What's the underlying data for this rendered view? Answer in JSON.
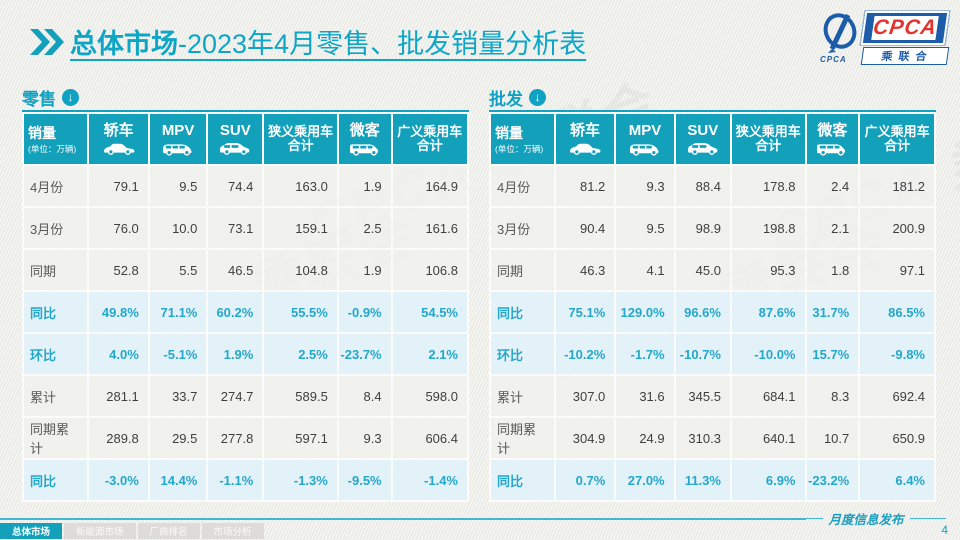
{
  "header": {
    "title_main": "总体市场",
    "title_rest": "-2023年4月零售、批发销量分析表"
  },
  "logo": {
    "cpca": "CPCA",
    "cn": "乘联合",
    "emblem_caption": "CPCA"
  },
  "watermark": "CPCA 乘联会",
  "colors": {
    "accent": "#13a0bb",
    "title_teal": "#0ea6c6",
    "percent_text": "#23a7cb",
    "percent_bg": "#e3f2f8",
    "logo_blue": "#1c5ca9",
    "logo_red": "#e4322e"
  },
  "tables": [
    {
      "id": "retail",
      "section_label": "零售",
      "unit_title": "销量",
      "unit_sub": "(单位：万辆)",
      "columns": [
        {
          "label": "轿车",
          "icon": "sedan-icon"
        },
        {
          "label": "MPV",
          "icon": "mpv-icon"
        },
        {
          "label": "SUV",
          "icon": "suv-icon"
        },
        {
          "label": "狭义乘用车",
          "label2": "合计"
        },
        {
          "label": "微客",
          "icon": "microvan-icon"
        },
        {
          "label": "广义乘用车",
          "label2": "合计"
        }
      ],
      "rows": [
        {
          "label": "4月份",
          "type": "data",
          "values": [
            "79.1",
            "9.5",
            "74.4",
            "163.0",
            "1.9",
            "164.9"
          ]
        },
        {
          "label": "3月份",
          "type": "data",
          "values": [
            "76.0",
            "10.0",
            "73.1",
            "159.1",
            "2.5",
            "161.6"
          ]
        },
        {
          "label": "同期",
          "type": "data",
          "values": [
            "52.8",
            "5.5",
            "46.5",
            "104.8",
            "1.9",
            "106.8"
          ]
        },
        {
          "label": "同比",
          "type": "percent",
          "values": [
            "49.8%",
            "71.1%",
            "60.2%",
            "55.5%",
            "-0.9%",
            "54.5%"
          ]
        },
        {
          "label": "环比",
          "type": "percent",
          "values": [
            "4.0%",
            "-5.1%",
            "1.9%",
            "2.5%",
            "-23.7%",
            "2.1%"
          ]
        },
        {
          "label": "累计",
          "type": "data",
          "values": [
            "281.1",
            "33.7",
            "274.7",
            "589.5",
            "8.4",
            "598.0"
          ]
        },
        {
          "label": "同期累计",
          "type": "data",
          "values": [
            "289.8",
            "29.5",
            "277.8",
            "597.1",
            "9.3",
            "606.4"
          ]
        },
        {
          "label": "同比",
          "type": "percent",
          "values": [
            "-3.0%",
            "14.4%",
            "-1.1%",
            "-1.3%",
            "-9.5%",
            "-1.4%"
          ]
        }
      ]
    },
    {
      "id": "wholesale",
      "section_label": "批发",
      "unit_title": "销量",
      "unit_sub": "(单位：万辆)",
      "columns": [
        {
          "label": "轿车",
          "icon": "sedan-icon"
        },
        {
          "label": "MPV",
          "icon": "mpv-icon"
        },
        {
          "label": "SUV",
          "icon": "suv-icon"
        },
        {
          "label": "狭义乘用车",
          "label2": "合计"
        },
        {
          "label": "微客",
          "icon": "microvan-icon"
        },
        {
          "label": "广义乘用车",
          "label2": "合计"
        }
      ],
      "rows": [
        {
          "label": "4月份",
          "type": "data",
          "values": [
            "81.2",
            "9.3",
            "88.4",
            "178.8",
            "2.4",
            "181.2"
          ]
        },
        {
          "label": "3月份",
          "type": "data",
          "values": [
            "90.4",
            "9.5",
            "98.9",
            "198.8",
            "2.1",
            "200.9"
          ]
        },
        {
          "label": "同期",
          "type": "data",
          "values": [
            "46.3",
            "4.1",
            "45.0",
            "95.3",
            "1.8",
            "97.1"
          ]
        },
        {
          "label": "同比",
          "type": "percent",
          "values": [
            "75.1%",
            "129.0%",
            "96.6%",
            "87.6%",
            "31.7%",
            "86.5%"
          ]
        },
        {
          "label": "环比",
          "type": "percent",
          "values": [
            "-10.2%",
            "-1.7%",
            "-10.7%",
            "-10.0%",
            "15.7%",
            "-9.8%"
          ]
        },
        {
          "label": "累计",
          "type": "data",
          "values": [
            "307.0",
            "31.6",
            "345.5",
            "684.1",
            "8.3",
            "692.4"
          ]
        },
        {
          "label": "同期累计",
          "type": "data",
          "values": [
            "304.9",
            "24.9",
            "310.3",
            "640.1",
            "10.7",
            "650.9"
          ]
        },
        {
          "label": "同比",
          "type": "percent",
          "values": [
            "0.7%",
            "27.0%",
            "11.3%",
            "6.9%",
            "-23.2%",
            "6.4%"
          ]
        }
      ]
    }
  ],
  "footer": {
    "note": "月度信息发布",
    "page": "4",
    "tabs": [
      {
        "label": "总体市场",
        "active": true
      },
      {
        "label": "新能源市场",
        "active": false
      },
      {
        "label": "厂商排名",
        "active": false
      },
      {
        "label": "市场分析",
        "active": false
      }
    ]
  }
}
